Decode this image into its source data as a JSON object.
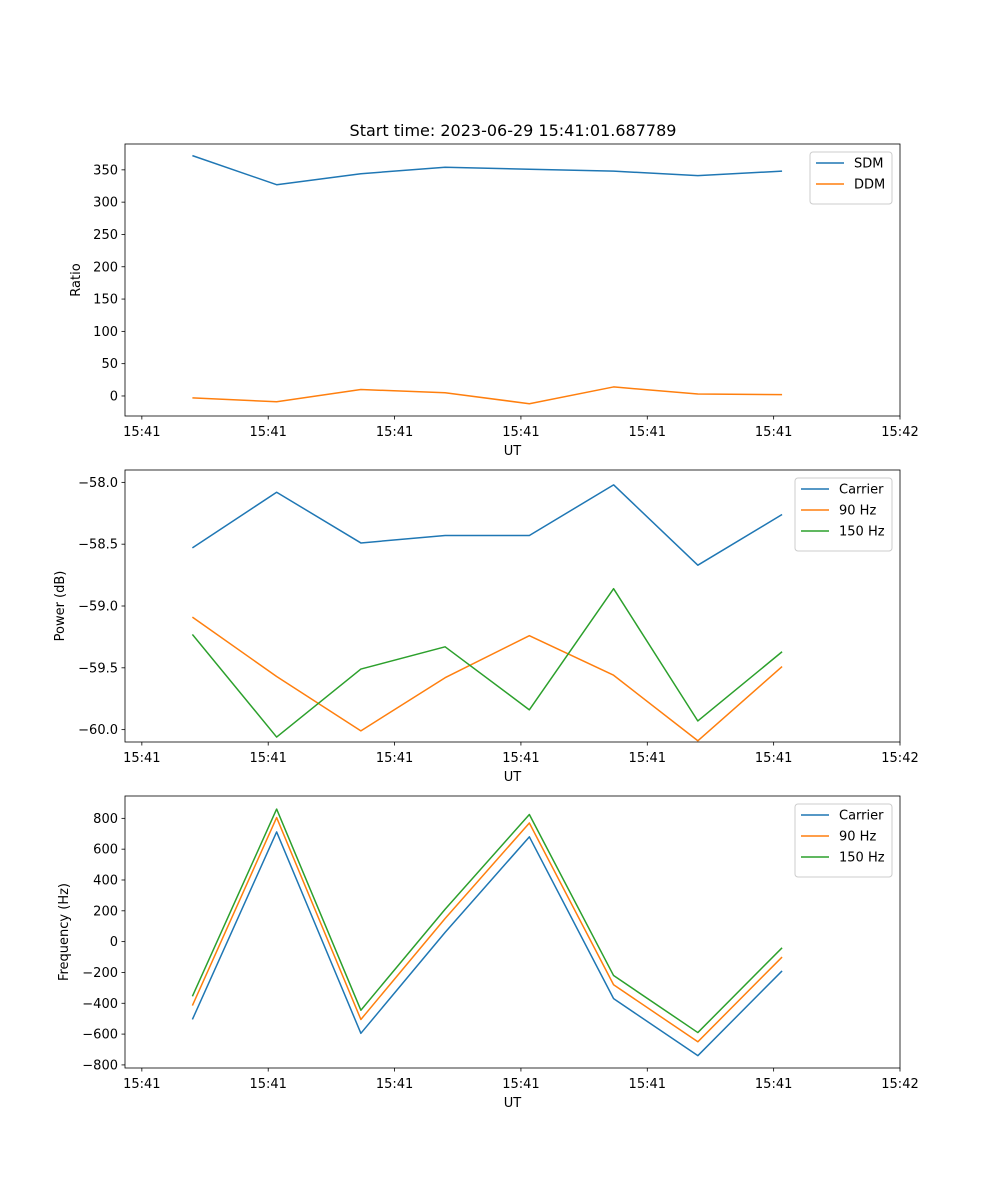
{
  "figure": {
    "title": "Start time: 2023-06-29 15:41:01.687789"
  },
  "colors": {
    "blue": "#1f77b4",
    "orange": "#ff7f0e",
    "green": "#2ca02c"
  },
  "chart_data": [
    {
      "type": "line",
      "title": "Start time: 2023-06-29 15:41:01.687789",
      "xlabel": "UT",
      "ylabel": "Ratio",
      "x": [
        1.0,
        2.0,
        3.0,
        4.0,
        5.0,
        6.0,
        7.0,
        8.0
      ],
      "xlim": [
        0.2,
        9.4
      ],
      "x_ticks": [
        0.4,
        1.9,
        3.4,
        4.9,
        6.4,
        7.9,
        9.4
      ],
      "x_tick_labels": [
        "15:41",
        "15:41",
        "15:41",
        "15:41",
        "15:41",
        "15:41",
        "15:42"
      ],
      "ylim": [
        -31,
        390
      ],
      "y_ticks": [
        0,
        50,
        100,
        150,
        200,
        250,
        300,
        350
      ],
      "y_tick_labels": [
        "0",
        "50",
        "100",
        "150",
        "200",
        "250",
        "300",
        "350"
      ],
      "legend_position": "top-right",
      "grid": false,
      "series": [
        {
          "name": "SDM",
          "color": "#1f77b4",
          "values": [
            372,
            327,
            344,
            354,
            351,
            348,
            341,
            348
          ]
        },
        {
          "name": "DDM",
          "color": "#ff7f0e",
          "values": [
            -3,
            -9,
            10,
            5,
            -12,
            14,
            3,
            2
          ]
        }
      ]
    },
    {
      "type": "line",
      "xlabel": "UT",
      "ylabel": "Power (dB)",
      "x": [
        1.0,
        2.0,
        3.0,
        4.0,
        5.0,
        6.0,
        7.0,
        8.0
      ],
      "xlim": [
        0.2,
        9.4
      ],
      "x_ticks": [
        0.4,
        1.9,
        3.4,
        4.9,
        6.4,
        7.9,
        9.4
      ],
      "x_tick_labels": [
        "15:41",
        "15:41",
        "15:41",
        "15:41",
        "15:41",
        "15:41",
        "15:42"
      ],
      "ylim": [
        -60.1,
        -57.9
      ],
      "y_ticks": [
        -60.0,
        -59.5,
        -59.0,
        -58.5,
        -58.0
      ],
      "y_tick_labels": [
        "−60.0",
        "−59.5",
        "−59.0",
        "−58.5",
        "−58.0"
      ],
      "legend_position": "top-right",
      "grid": false,
      "series": [
        {
          "name": "Carrier",
          "color": "#1f77b4",
          "values": [
            -58.53,
            -58.08,
            -58.49,
            -58.43,
            -58.43,
            -58.02,
            -58.67,
            -58.26
          ]
        },
        {
          "name": "90 Hz",
          "color": "#ff7f0e",
          "values": [
            -59.09,
            -59.57,
            -60.01,
            -59.58,
            -59.24,
            -59.56,
            -60.09,
            -59.49
          ]
        },
        {
          "name": "150 Hz",
          "color": "#2ca02c",
          "values": [
            -59.23,
            -60.06,
            -59.51,
            -59.33,
            -59.84,
            -58.86,
            -59.93,
            -59.37
          ]
        }
      ]
    },
    {
      "type": "line",
      "xlabel": "UT",
      "ylabel": "Frequency (Hz)",
      "x": [
        1.0,
        2.0,
        3.0,
        4.0,
        5.0,
        6.0,
        7.0,
        8.0
      ],
      "xlim": [
        0.2,
        9.4
      ],
      "x_ticks": [
        0.4,
        1.9,
        3.4,
        4.9,
        6.4,
        7.9,
        9.4
      ],
      "x_tick_labels": [
        "15:41",
        "15:41",
        "15:41",
        "15:41",
        "15:41",
        "15:41",
        "15:42"
      ],
      "ylim": [
        -820,
        945
      ],
      "y_ticks": [
        -800,
        -600,
        -400,
        -200,
        0,
        200,
        400,
        600,
        800
      ],
      "y_tick_labels": [
        "−800",
        "−600",
        "−400",
        "−200",
        "0",
        "200",
        "400",
        "600",
        "800"
      ],
      "legend_position": "top-right",
      "grid": false,
      "series": [
        {
          "name": "Carrier",
          "color": "#1f77b4",
          "values": [
            -505,
            712,
            -595,
            60,
            680,
            -370,
            -740,
            -190
          ]
        },
        {
          "name": "90 Hz",
          "color": "#ff7f0e",
          "values": [
            -415,
            805,
            -505,
            150,
            770,
            -280,
            -650,
            -100
          ]
        },
        {
          "name": "150 Hz",
          "color": "#2ca02c",
          "values": [
            -355,
            860,
            -445,
            210,
            825,
            -220,
            -590,
            -40
          ]
        }
      ]
    }
  ]
}
